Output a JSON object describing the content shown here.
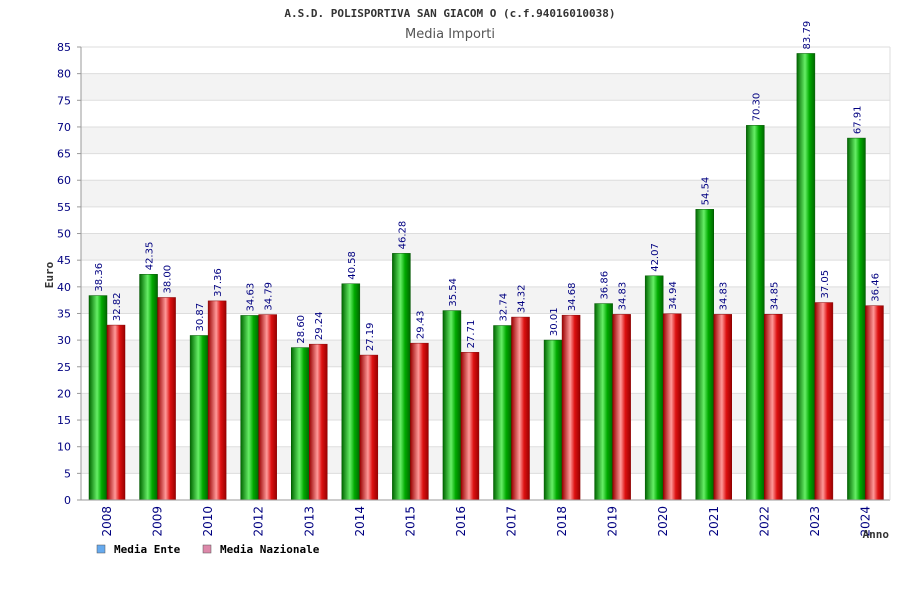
{
  "chart_data": {
    "type": "bar",
    "title": "A.S.D. POLISPORTIVA SAN GIACOM O (c.f.94016010038)",
    "subtitle": "Media Importi",
    "xlabel": "Anno",
    "ylabel": "Euro",
    "ylim": [
      0,
      85
    ],
    "yticks": [
      0,
      5,
      10,
      15,
      20,
      25,
      30,
      35,
      40,
      45,
      50,
      55,
      60,
      65,
      70,
      75,
      80,
      85
    ],
    "grid": true,
    "legend_position": "bottom-left",
    "categories": [
      "2008",
      "2009",
      "2010",
      "2012",
      "2013",
      "2014",
      "2015",
      "2016",
      "2017",
      "2018",
      "2019",
      "2020",
      "2021",
      "2022",
      "2023",
      "2024"
    ],
    "series": [
      {
        "name": "Media Ente",
        "color": "#00aa00",
        "legend_color": "#66aaee",
        "values": [
          38.36,
          42.35,
          30.87,
          34.63,
          28.6,
          40.58,
          46.28,
          35.54,
          32.74,
          30.01,
          36.86,
          42.07,
          54.54,
          70.3,
          83.79,
          67.91
        ],
        "labels": [
          "38.36",
          "42.35",
          "30.87",
          "34.63",
          "28.60",
          "40.58",
          "46.28",
          "35.54",
          "32.74",
          "30.01",
          "36.86",
          "42.07",
          "54.54",
          "70.30",
          "83.79",
          "67.91"
        ]
      },
      {
        "name": "Media Nazionale",
        "color": "#dd1111",
        "legend_color": "#dd88aa",
        "values": [
          32.82,
          38.0,
          37.36,
          34.79,
          29.24,
          27.19,
          29.43,
          27.71,
          34.32,
          34.68,
          34.83,
          34.94,
          34.83,
          34.85,
          37.05,
          36.46
        ],
        "labels": [
          "32.82",
          "38.00",
          "37.36",
          "34.79",
          "29.24",
          "27.19",
          "29.43",
          "27.71",
          "34.32",
          "34.68",
          "34.83",
          "34.94",
          "34.83",
          "34.85",
          "37.05",
          "36.46"
        ]
      }
    ]
  }
}
